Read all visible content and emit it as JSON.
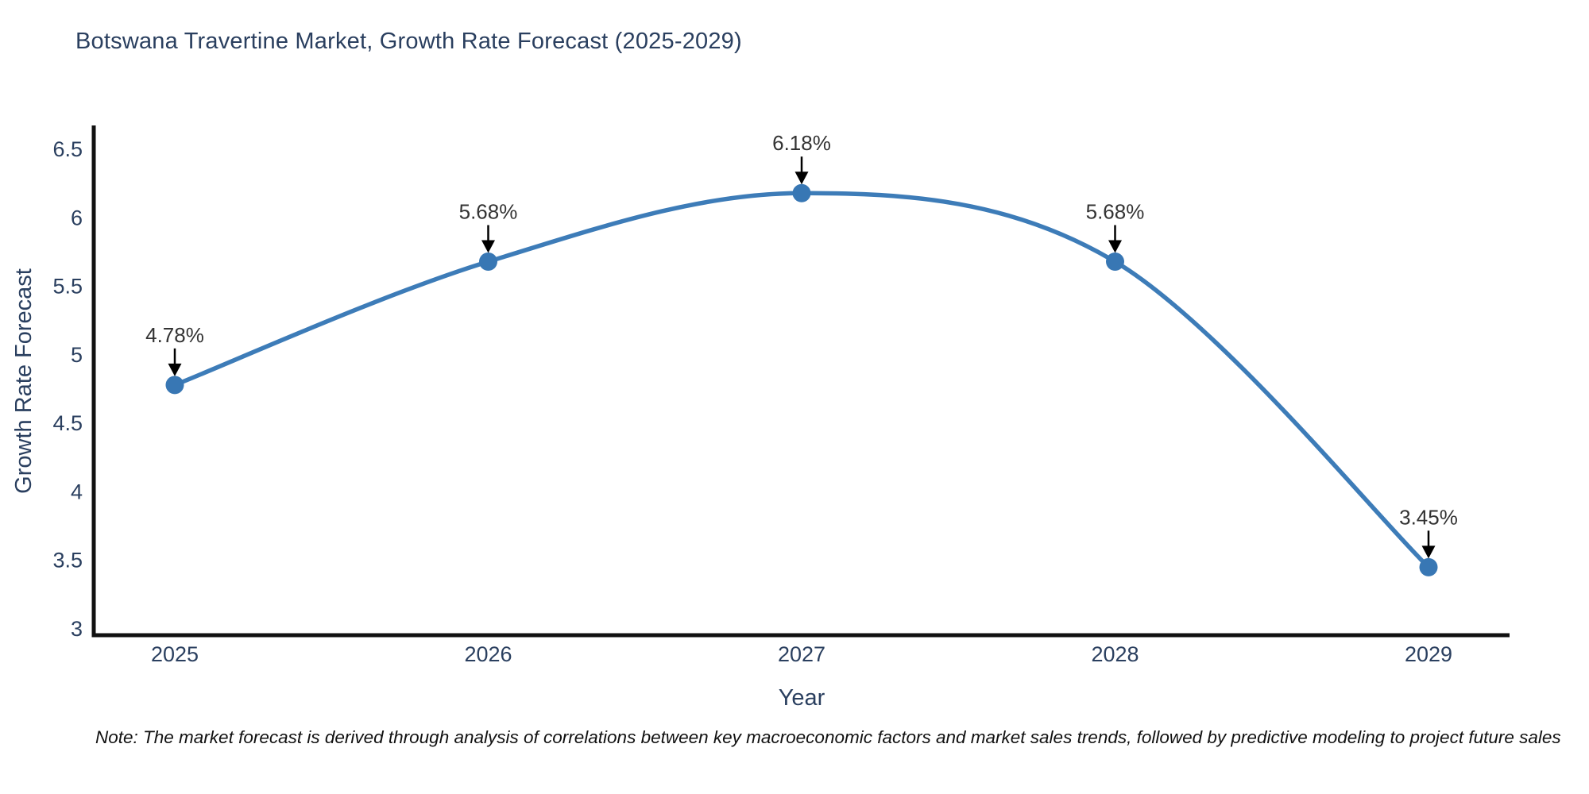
{
  "title": "Botswana Travertine Market, Growth Rate Forecast (2025-2029)",
  "note": "Note: The market forecast is derived through analysis of correlations between key macroeconomic factors and market sales trends, followed by predictive modeling to project future sales",
  "chart_data": {
    "type": "line",
    "title": "Botswana Travertine Market, Growth Rate Forecast (2025-2029)",
    "xlabel": "Year",
    "ylabel": "Growth Rate Forecast",
    "categories": [
      "2025",
      "2026",
      "2027",
      "2028",
      "2029"
    ],
    "values": [
      4.78,
      5.68,
      6.18,
      5.68,
      3.45
    ],
    "point_labels": [
      "4.78%",
      "5.68%",
      "6.18%",
      "5.68%",
      "3.45%"
    ],
    "yticks": [
      3,
      3.5,
      4,
      4.5,
      5,
      5.5,
      6,
      6.5
    ],
    "ylim": [
      2.95,
      6.66
    ],
    "grid": false,
    "legend": "none",
    "line_shape": "spline",
    "colors": {
      "line": "#3d7cb8",
      "marker": "#3877b4",
      "axis": "#111111",
      "axis_text": "#2a3f5f",
      "annotation_text": "#333333",
      "arrow": "#000000"
    }
  }
}
